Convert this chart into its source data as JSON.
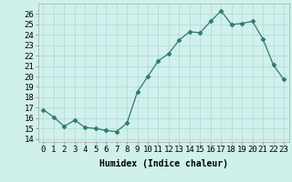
{
  "x": [
    0,
    1,
    2,
    3,
    4,
    5,
    6,
    7,
    8,
    9,
    10,
    11,
    12,
    13,
    14,
    15,
    16,
    17,
    18,
    19,
    20,
    21,
    22,
    23
  ],
  "y": [
    16.8,
    16.1,
    15.2,
    15.8,
    15.1,
    15.0,
    14.8,
    14.7,
    15.5,
    18.5,
    20.0,
    21.5,
    22.2,
    23.5,
    24.3,
    24.2,
    25.3,
    26.3,
    25.0,
    25.1,
    25.3,
    23.6,
    21.1,
    19.7
  ],
  "line_color": "#2d7a6e",
  "marker": "D",
  "marker_size": 2.5,
  "bg_color": "#d0f0ec",
  "grid_color": "#b0d8d4",
  "xlabel": "Humidex (Indice chaleur)",
  "ylabel_ticks": [
    14,
    15,
    16,
    17,
    18,
    19,
    20,
    21,
    22,
    23,
    24,
    25,
    26
  ],
  "ylim": [
    13.7,
    27.0
  ],
  "xlim": [
    -0.5,
    23.5
  ],
  "xlabel_fontsize": 7,
  "tick_fontsize": 6.5
}
